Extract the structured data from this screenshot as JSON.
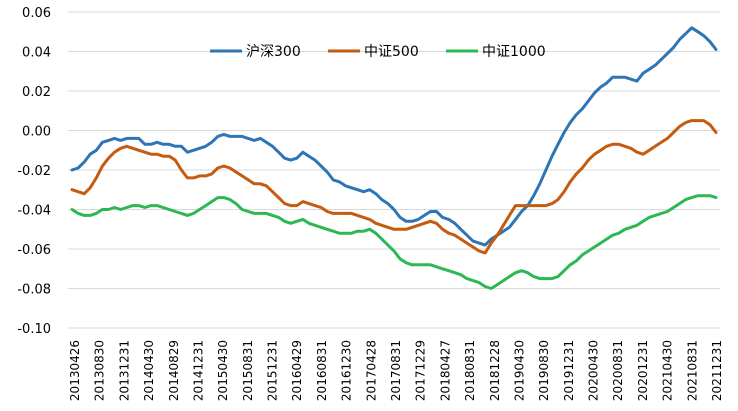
{
  "chart_data": {
    "type": "line",
    "title": "",
    "xlabel": "",
    "ylabel": "",
    "ylim": [
      -0.1,
      0.06
    ],
    "yticks": [
      "0.06",
      "0.04",
      "0.02",
      "0.00",
      "-0.02",
      "-0.04",
      "-0.06",
      "-0.08",
      "-0.10"
    ],
    "ytick_values": [
      0.06,
      0.04,
      0.02,
      0.0,
      -0.02,
      -0.04,
      -0.06,
      -0.08,
      -0.1
    ],
    "x_tick_labels": [
      "20130426",
      "20130830",
      "20131231",
      "20140430",
      "20140829",
      "20141231",
      "20150430",
      "20150831",
      "20151231",
      "20160429",
      "20160831",
      "20161230",
      "20170428",
      "20170831",
      "20171229",
      "20180427",
      "20180831",
      "20181228",
      "20190430",
      "20190830",
      "20191231",
      "20200430",
      "20200831",
      "20201231",
      "20210430",
      "20210831",
      "20211231"
    ],
    "legend_position": "top-center",
    "series": [
      {
        "name": "沪深300",
        "color": "#2E75B6",
        "values": [
          -0.02,
          -0.019,
          -0.016,
          -0.012,
          -0.01,
          -0.006,
          -0.005,
          -0.004,
          -0.005,
          -0.004,
          -0.004,
          -0.004,
          -0.007,
          -0.007,
          -0.006,
          -0.007,
          -0.007,
          -0.008,
          -0.008,
          -0.011,
          -0.01,
          -0.009,
          -0.008,
          -0.006,
          -0.003,
          -0.002,
          -0.003,
          -0.003,
          -0.003,
          -0.004,
          -0.005,
          -0.004,
          -0.006,
          -0.008,
          -0.011,
          -0.014,
          -0.015,
          -0.014,
          -0.011,
          -0.013,
          -0.015,
          -0.018,
          -0.021,
          -0.025,
          -0.026,
          -0.028,
          -0.029,
          -0.03,
          -0.031,
          -0.03,
          -0.032,
          -0.035,
          -0.037,
          -0.04,
          -0.044,
          -0.046,
          -0.046,
          -0.045,
          -0.043,
          -0.041,
          -0.041,
          -0.044,
          -0.045,
          -0.047,
          -0.05,
          -0.053,
          -0.056,
          -0.057,
          -0.058,
          -0.055,
          -0.053,
          -0.051,
          -0.049,
          -0.045,
          -0.041,
          -0.038,
          -0.033,
          -0.027,
          -0.02,
          -0.013,
          -0.007,
          -0.001,
          0.004,
          0.008,
          0.011,
          0.015,
          0.019,
          0.022,
          0.024,
          0.027,
          0.027,
          0.027,
          0.026,
          0.025,
          0.029,
          0.031,
          0.033,
          0.036,
          0.039,
          0.042,
          0.046,
          0.049,
          0.052,
          0.05,
          0.048,
          0.045,
          0.041
        ]
      },
      {
        "name": "中证500",
        "color": "#C55A11",
        "values": [
          -0.03,
          -0.031,
          -0.032,
          -0.029,
          -0.024,
          -0.018,
          -0.014,
          -0.011,
          -0.009,
          -0.008,
          -0.009,
          -0.01,
          -0.011,
          -0.012,
          -0.012,
          -0.013,
          -0.013,
          -0.015,
          -0.02,
          -0.024,
          -0.024,
          -0.023,
          -0.023,
          -0.022,
          -0.019,
          -0.018,
          -0.019,
          -0.021,
          -0.023,
          -0.025,
          -0.027,
          -0.027,
          -0.028,
          -0.031,
          -0.034,
          -0.037,
          -0.038,
          -0.038,
          -0.036,
          -0.037,
          -0.038,
          -0.039,
          -0.041,
          -0.042,
          -0.042,
          -0.042,
          -0.042,
          -0.043,
          -0.044,
          -0.045,
          -0.047,
          -0.048,
          -0.049,
          -0.05,
          -0.05,
          -0.05,
          -0.049,
          -0.048,
          -0.047,
          -0.046,
          -0.047,
          -0.05,
          -0.052,
          -0.053,
          -0.055,
          -0.057,
          -0.059,
          -0.061,
          -0.062,
          -0.057,
          -0.053,
          -0.048,
          -0.043,
          -0.038,
          -0.038,
          -0.038,
          -0.038,
          -0.038,
          -0.038,
          -0.037,
          -0.035,
          -0.031,
          -0.026,
          -0.022,
          -0.019,
          -0.015,
          -0.012,
          -0.01,
          -0.008,
          -0.007,
          -0.007,
          -0.008,
          -0.009,
          -0.011,
          -0.012,
          -0.01,
          -0.008,
          -0.006,
          -0.004,
          -0.001,
          0.002,
          0.004,
          0.005,
          0.005,
          0.005,
          0.003,
          -0.001
        ]
      },
      {
        "name": "中证1000",
        "color": "#2DB853",
        "values": [
          -0.04,
          -0.042,
          -0.043,
          -0.043,
          -0.042,
          -0.04,
          -0.04,
          -0.039,
          -0.04,
          -0.039,
          -0.038,
          -0.038,
          -0.039,
          -0.038,
          -0.038,
          -0.039,
          -0.04,
          -0.041,
          -0.042,
          -0.043,
          -0.042,
          -0.04,
          -0.038,
          -0.036,
          -0.034,
          -0.034,
          -0.035,
          -0.037,
          -0.04,
          -0.041,
          -0.042,
          -0.042,
          -0.042,
          -0.043,
          -0.044,
          -0.046,
          -0.047,
          -0.046,
          -0.045,
          -0.047,
          -0.048,
          -0.049,
          -0.05,
          -0.051,
          -0.052,
          -0.052,
          -0.052,
          -0.051,
          -0.051,
          -0.05,
          -0.052,
          -0.055,
          -0.058,
          -0.061,
          -0.065,
          -0.067,
          -0.068,
          -0.068,
          -0.068,
          -0.068,
          -0.069,
          -0.07,
          -0.071,
          -0.072,
          -0.073,
          -0.075,
          -0.076,
          -0.077,
          -0.079,
          -0.08,
          -0.078,
          -0.076,
          -0.074,
          -0.072,
          -0.071,
          -0.072,
          -0.074,
          -0.075,
          -0.075,
          -0.075,
          -0.074,
          -0.071,
          -0.068,
          -0.066,
          -0.063,
          -0.061,
          -0.059,
          -0.057,
          -0.055,
          -0.053,
          -0.052,
          -0.05,
          -0.049,
          -0.048,
          -0.046,
          -0.044,
          -0.043,
          -0.042,
          -0.041,
          -0.039,
          -0.037,
          -0.035,
          -0.034,
          -0.033,
          -0.033,
          -0.033,
          -0.034
        ]
      }
    ]
  }
}
